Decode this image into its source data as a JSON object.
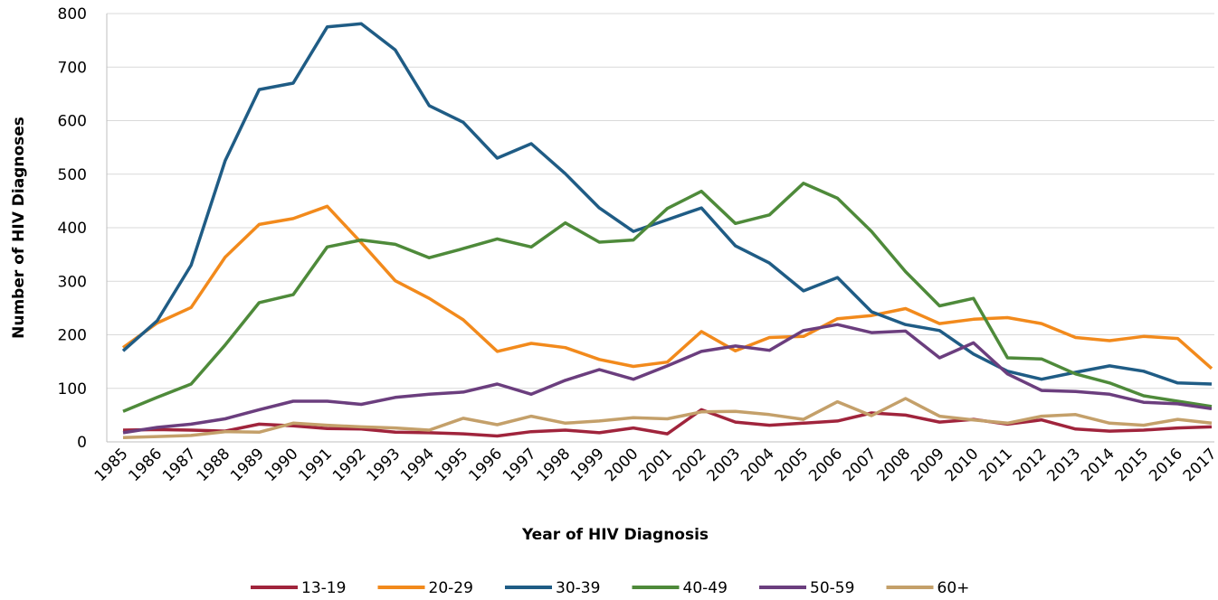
{
  "chart_data": {
    "type": "line",
    "x_label": "Year of HIV Diagnosis",
    "y_label": "Number of HIV Diagnoses",
    "categories": [
      "1985",
      "1986",
      "1987",
      "1988",
      "1989",
      "1990",
      "1991",
      "1992",
      "1993",
      "1994",
      "1995",
      "1996",
      "1997",
      "1998",
      "1999",
      "2000",
      "2001",
      "2002",
      "2003",
      "2004",
      "2005",
      "2006",
      "2007",
      "2008",
      "2009",
      "2010",
      "2011",
      "2012",
      "2013",
      "2014",
      "2015",
      "2016",
      "2017"
    ],
    "series": [
      {
        "name": "13-19",
        "color": "#a0243c",
        "values": [
          22,
          23,
          22,
          20,
          33,
          30,
          25,
          24,
          18,
          17,
          15,
          11,
          19,
          22,
          17,
          26,
          15,
          60,
          37,
          31,
          35,
          39,
          54,
          50,
          37,
          42,
          33,
          41,
          24,
          20,
          22,
          26,
          28
        ]
      },
      {
        "name": "20-29",
        "color": "#f28a1c",
        "values": [
          176,
          222,
          251,
          345,
          406,
          417,
          440,
          372,
          301,
          268,
          228,
          169,
          184,
          176,
          154,
          141,
          149,
          206,
          170,
          195,
          197,
          230,
          236,
          249,
          221,
          229,
          232,
          221,
          195,
          189,
          197,
          193,
          137
        ]
      },
      {
        "name": "30-39",
        "color": "#1f5c85",
        "values": [
          170,
          226,
          330,
          525,
          658,
          670,
          775,
          781,
          732,
          628,
          597,
          530,
          557,
          501,
          437,
          393,
          415,
          437,
          366,
          334,
          282,
          307,
          243,
          219,
          208,
          164,
          132,
          117,
          130,
          142,
          132,
          110,
          108
        ]
      },
      {
        "name": "40-49",
        "color": "#4e8a3a",
        "values": [
          57,
          83,
          108,
          181,
          260,
          275,
          364,
          377,
          369,
          344,
          361,
          379,
          364,
          409,
          373,
          377,
          436,
          468,
          408,
          424,
          483,
          455,
          393,
          318,
          254,
          268,
          157,
          155,
          127,
          110,
          86,
          76,
          66
        ]
      },
      {
        "name": "50-59",
        "color": "#6b3e7e",
        "values": [
          17,
          27,
          33,
          43,
          60,
          76,
          76,
          70,
          83,
          89,
          93,
          108,
          89,
          115,
          135,
          117,
          142,
          169,
          179,
          171,
          208,
          219,
          204,
          207,
          157,
          185,
          127,
          96,
          94,
          89,
          74,
          71,
          62
        ]
      },
      {
        "name": "60+",
        "color": "#c4a06a",
        "values": [
          8,
          10,
          12,
          19,
          18,
          35,
          31,
          28,
          26,
          22,
          44,
          32,
          48,
          35,
          39,
          45,
          43,
          56,
          57,
          51,
          42,
          75,
          49,
          81,
          48,
          41,
          35,
          48,
          51,
          35,
          31,
          42,
          35
        ]
      }
    ],
    "ylim": [
      0,
      800
    ],
    "yticks": [
      0,
      100,
      200,
      300,
      400,
      500,
      600,
      700,
      800
    ],
    "grid": true,
    "legend": "bottom"
  }
}
